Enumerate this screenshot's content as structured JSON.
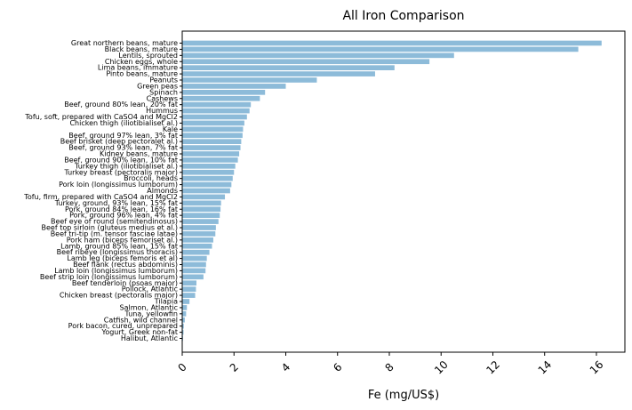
{
  "chart_data": {
    "type": "bar",
    "orientation": "horizontal",
    "title": "All Iron Comparison",
    "xlabel": "Fe (mg/US$)",
    "ylabel": "",
    "xlim": [
      0,
      17.1
    ],
    "xticks": [
      0,
      2,
      4,
      6,
      8,
      10,
      12,
      14,
      16
    ],
    "grid": false,
    "bar_color": "#8dbbd9",
    "categories": [
      "Great northern beans, mature",
      "Black beans, mature",
      "Lentils, sprouted",
      "Chicken eggs, whole",
      "Lima beans, immature",
      "Pinto beans, mature",
      "Peanuts",
      "Green peas",
      "Spinach",
      "Cashews",
      "Beef, ground 80% lean, 20% fat",
      "Hummus",
      "Tofu, soft, prepared with CaSO4 and MgCl2",
      "Chicken thigh (iliotibialiset al.)",
      "Kale",
      "Beef, ground 97% lean, 3% fat",
      "Beef brisket (deep pectoralet al.)",
      "Beef, ground 93% lean, 7% fat",
      "Kidney beans, mature",
      "Beef, ground 90% lean, 10% fat",
      "Turkey thigh (iliotibialiset al.)",
      "Turkey breast (pectoralis major)",
      "Broccoli, heads",
      "Pork loin (longissimus lumborum)",
      "Almonds",
      "Tofu, firm, prepared with CaSO4 and MgCl2",
      "Turkey, ground, 93% lean, 15% fat",
      "Pork, ground 84% lean, 16% fat",
      "Pork, ground 96% lean, 4% fat",
      "Beef eye of round (semitendinosus)",
      "Beef top sirloin (gluteus medius et al.)",
      "Beef tri-tip (m. tensor fasciae latae)",
      "Pork ham (biceps femoriset al.)",
      "Lamb, ground 85% lean, 15% fat",
      "Beef ribeye (longissimus thoracis)",
      "Lamb leg (biceps femoris et al)",
      "Beef flank (rectus abdominis)",
      "Lamb loin (longissimus lumborum)",
      "Beef strip loin (longissimus lumborum)",
      "Beef tenderloin (psoas major)",
      "Pollock, Atlantic",
      "Chicken breast (pectoralis major)",
      "Tilapia",
      "Salmon, Atlantic",
      "Tuna, yellowfin",
      "Catfish, wild channel",
      "Pork bacon, cured, unprepared",
      "Yogurt, Greek non-fat",
      "Halibut, Atlantic"
    ],
    "values": [
      16.2,
      15.3,
      10.5,
      9.55,
      8.2,
      7.45,
      5.2,
      4.0,
      3.2,
      3.0,
      2.65,
      2.6,
      2.5,
      2.4,
      2.35,
      2.33,
      2.28,
      2.25,
      2.2,
      2.15,
      2.05,
      2.0,
      1.95,
      1.9,
      1.85,
      1.65,
      1.5,
      1.48,
      1.45,
      1.4,
      1.3,
      1.28,
      1.2,
      1.15,
      1.05,
      0.95,
      0.92,
      0.9,
      0.82,
      0.55,
      0.53,
      0.5,
      0.28,
      0.18,
      0.15,
      0.1,
      0.06,
      0.05,
      0.03
    ]
  }
}
